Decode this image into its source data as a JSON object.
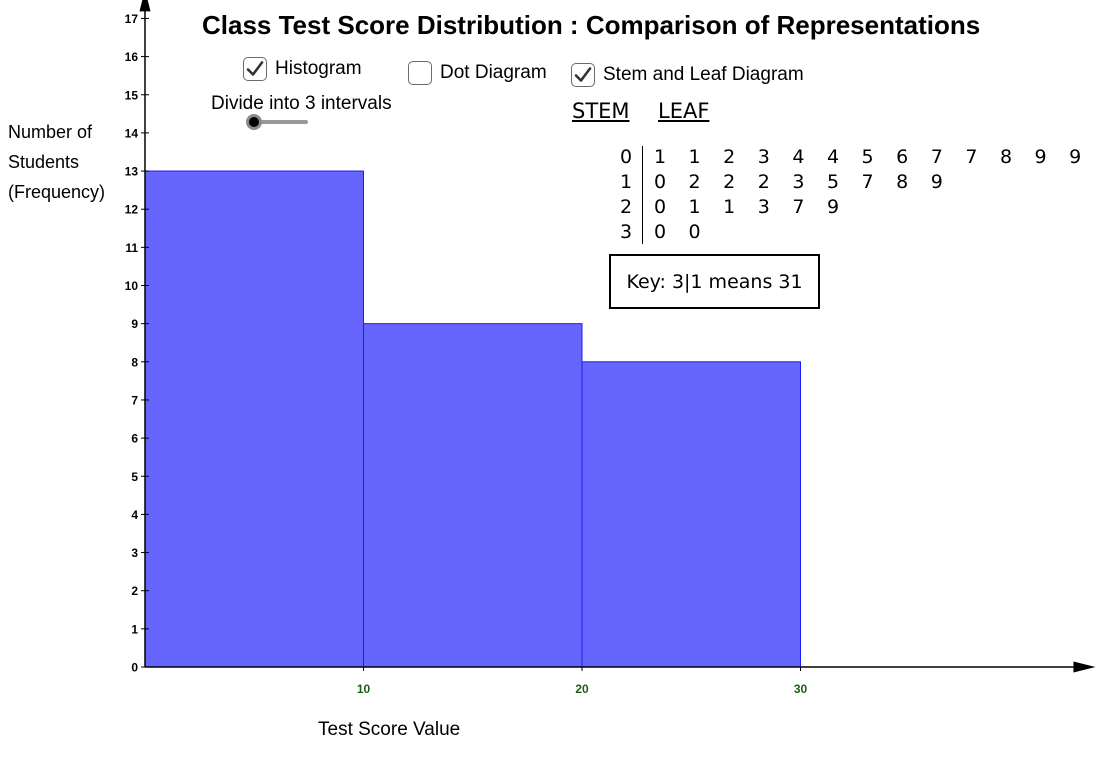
{
  "title": "Class Test Score Distribution : Comparison of Representations",
  "controls": {
    "histogram": {
      "label": "Histogram",
      "checked": true
    },
    "dot_diagram": {
      "label": "Dot Diagram",
      "checked": false
    },
    "stem_leaf": {
      "label": "Stem and Leaf Diagram",
      "checked": true
    },
    "slider": {
      "label": "Divide into 3 intervals",
      "value": 3,
      "min": 3,
      "max": 10
    }
  },
  "stem_leaf": {
    "stem_header": "STEM",
    "leaf_header": "LEAF",
    "rows": [
      {
        "stem": "0",
        "leaves": [
          "1",
          "1",
          "2",
          "3",
          "4",
          "4",
          "5",
          "6",
          "7",
          "7",
          "8",
          "9",
          "9"
        ]
      },
      {
        "stem": "1",
        "leaves": [
          "0",
          "2",
          "2",
          "2",
          "3",
          "5",
          "7",
          "8",
          "9"
        ]
      },
      {
        "stem": "2",
        "leaves": [
          "0",
          "1",
          "1",
          "3",
          "7",
          "9"
        ]
      },
      {
        "stem": "3",
        "leaves": [
          "0",
          "0"
        ]
      }
    ],
    "key": "Key: 3|1 means 31"
  },
  "colors": {
    "bar_fill": "#6666ff",
    "bar_stroke": "#1a1aff",
    "x_tick": "#1a5e1a",
    "axis": "#000000"
  },
  "chart_data": {
    "type": "bar",
    "title": "Class Test Score Distribution : Comparison of Representations",
    "xlabel": "Test Score Value",
    "ylabel_lines": [
      "Number of",
      "Students",
      "(Frequency)"
    ],
    "bins": [
      {
        "x0": 0,
        "x1": 10,
        "value": 13
      },
      {
        "x0": 10,
        "x1": 20,
        "value": 9
      },
      {
        "x0": 20,
        "x1": 30,
        "value": 8
      }
    ],
    "x_ticks": [
      10,
      20,
      30
    ],
    "y_ticks": [
      0,
      1,
      2,
      3,
      4,
      5,
      6,
      7,
      8,
      9,
      10,
      11,
      12,
      13,
      14,
      15,
      16,
      17
    ],
    "xlim": [
      0,
      43.5
    ],
    "ylim": [
      0,
      17.5
    ],
    "grid": false
  }
}
